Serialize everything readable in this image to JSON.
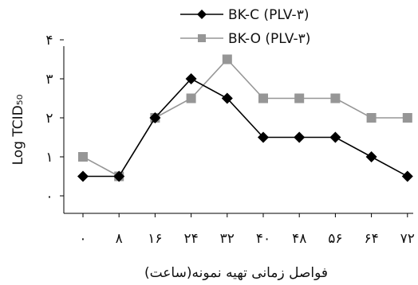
{
  "chart_data": {
    "type": "line",
    "xlabel": "فواصل زمانی تهیه نمونه(ساعت)",
    "ylabel": "Log TCID₅₀",
    "x": [
      0,
      8,
      16,
      24,
      32,
      40,
      48,
      56,
      64,
      72
    ],
    "xtick_labels": [
      "۰",
      "۸",
      "۱۶",
      "۲۴",
      "۳۲",
      "۴۰",
      "۴۸",
      "۵۶",
      "۶۴",
      "۷۲"
    ],
    "ylim": [
      0,
      4
    ],
    "yticks": [
      0,
      1,
      2,
      3,
      4
    ],
    "ytick_labels": [
      "۰",
      "۱",
      "۲",
      "۳",
      "۴"
    ],
    "grid": false,
    "legend_position": "top-right",
    "series": [
      {
        "name": "BK-C (PLV-۳)",
        "color": "#000000",
        "marker": "diamond",
        "values": [
          0.5,
          0.5,
          2,
          3,
          2.5,
          1.5,
          1.5,
          1.5,
          1,
          0.5
        ]
      },
      {
        "name": "BK-O (PLV-۳)",
        "color": "#969696",
        "marker": "square",
        "values": [
          1,
          0.5,
          2,
          2.5,
          3.5,
          2.5,
          2.5,
          2.5,
          2,
          2
        ]
      }
    ]
  }
}
